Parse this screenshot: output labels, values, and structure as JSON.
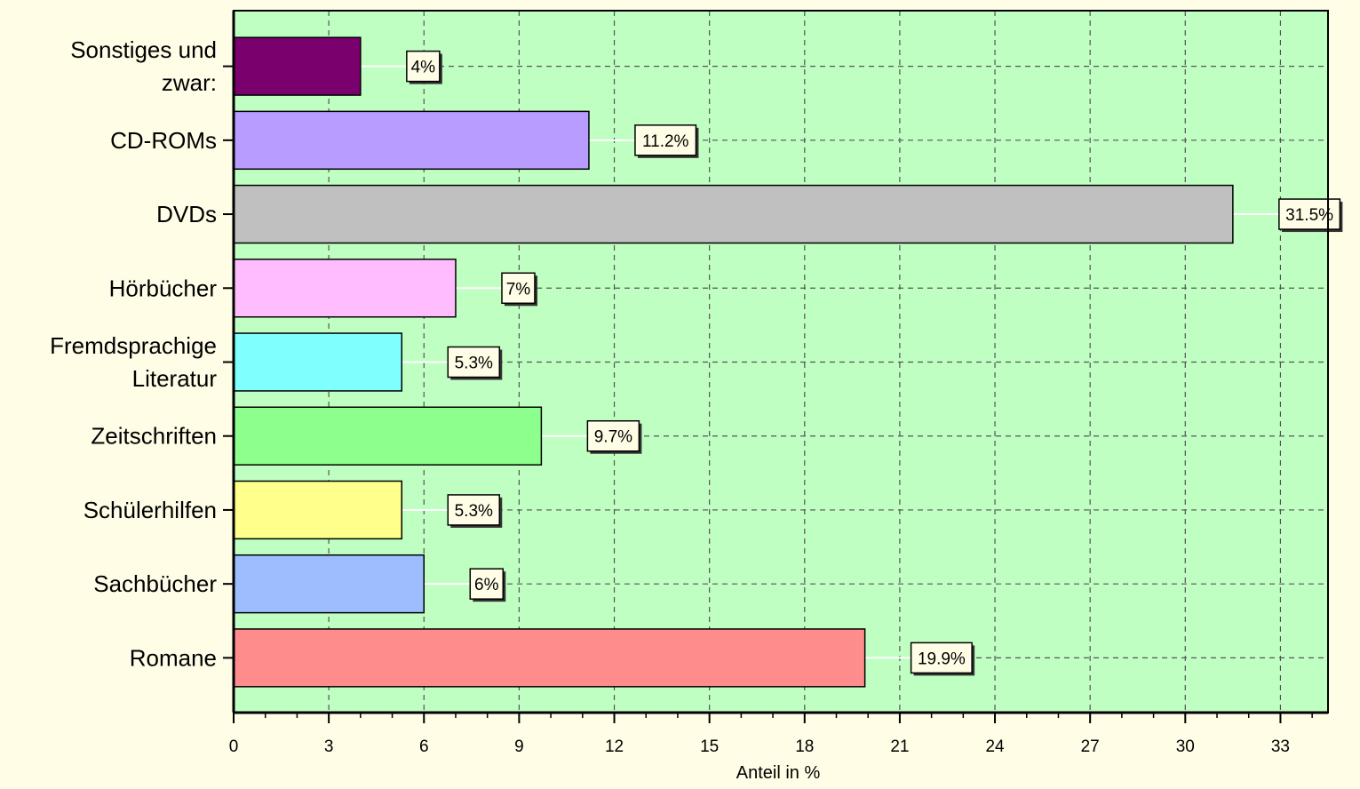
{
  "chart_data": {
    "type": "bar",
    "orientation": "horizontal",
    "categories": [
      [
        "Sonstiges und",
        "zwar:"
      ],
      [
        "CD-ROMs"
      ],
      [
        "DVDs"
      ],
      [
        "Hörbücher"
      ],
      [
        "Fremdsprachige",
        "Literatur"
      ],
      [
        "Zeitschriften"
      ],
      [
        "Schülerhilfen"
      ],
      [
        "Sachbücher"
      ],
      [
        "Romane"
      ]
    ],
    "values": [
      4,
      11.2,
      31.5,
      7,
      5.3,
      9.7,
      5.3,
      6,
      19.9
    ],
    "data_labels": [
      "4%",
      "11.2%",
      "31.5%",
      "7%",
      "5.3%",
      "9.7%",
      "5.3%",
      "6%",
      "19.9%"
    ],
    "colors": [
      "#7a006e",
      "#b99cff",
      "#c0c0c0",
      "#ffbcff",
      "#80ffff",
      "#8cff8c",
      "#ffff8c",
      "#9dbdff",
      "#ff8c8c"
    ],
    "xlabel": "Anteil in %",
    "ylabel": "",
    "title": "",
    "xlim": [
      0,
      34.5
    ],
    "xticks": [
      0,
      3,
      6,
      9,
      12,
      15,
      18,
      21,
      24,
      27,
      30,
      33
    ],
    "grid": true,
    "plot_background": "#bfffc2",
    "page_background": "#fffde6"
  }
}
